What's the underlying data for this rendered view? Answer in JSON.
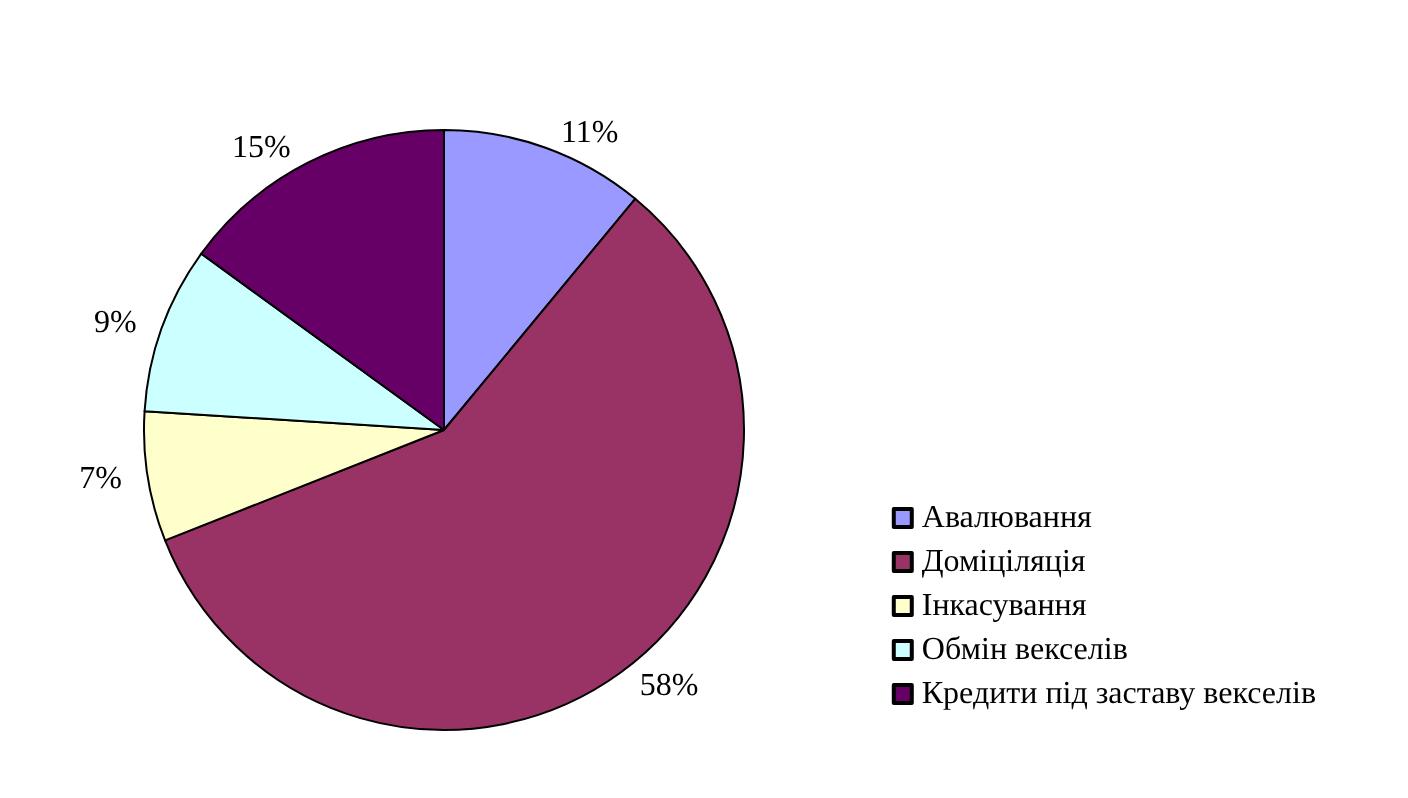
{
  "chart_data": {
    "type": "pie",
    "categories": [
      "Авалювання",
      "Доміціляція",
      "Інкасування",
      "Обмін векселів",
      "Кредити під заставу векселів"
    ],
    "values": [
      11,
      58,
      7,
      9,
      15
    ],
    "colors": [
      "#9999ff",
      "#993366",
      "#ffffcc",
      "#ccffff",
      "#660066"
    ],
    "value_labels": [
      "11%",
      "58%",
      "7%",
      "9%",
      "15%"
    ],
    "legend": "bottom right"
  }
}
